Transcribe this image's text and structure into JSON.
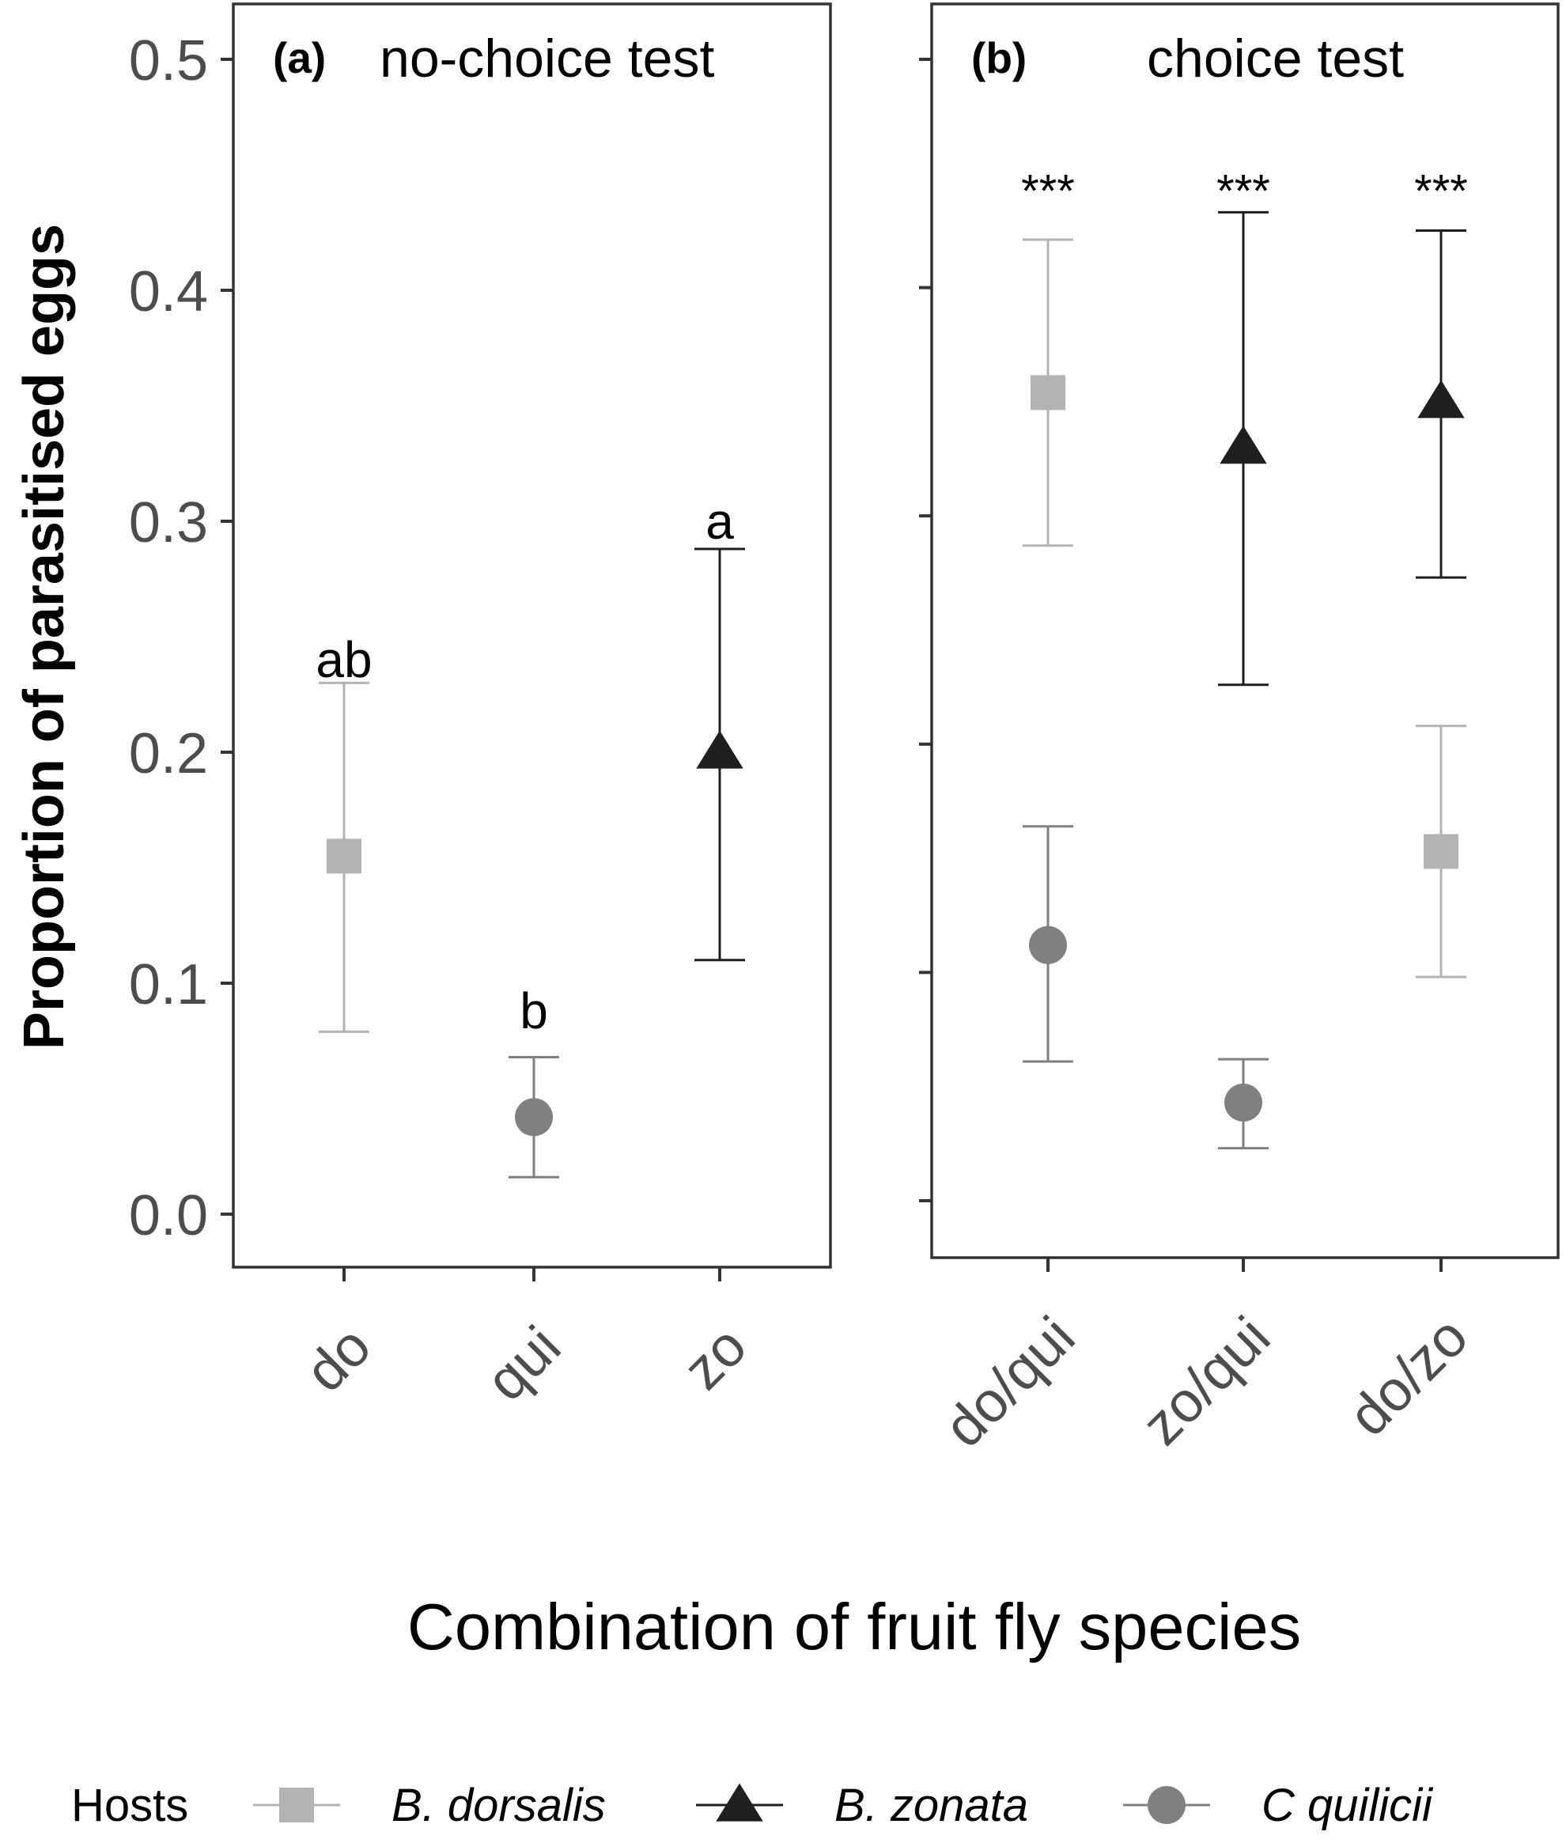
{
  "figure": {
    "ylabel": "Proportion of parasitised eggs",
    "xlabel": "Combination of fruit fly species",
    "legend_title": "Hosts",
    "y_tick_labels": [
      "0.0",
      "0.1",
      "0.2",
      "0.3",
      "0.4",
      "0.5"
    ]
  },
  "colors": {
    "B. dorsalis": "#b3b3b3",
    "B. zonata": "#1f1f1f",
    "C quilicii": "#808080",
    "axis": "#333333",
    "tick_label": "#4d4d4d"
  },
  "legend": [
    {
      "label": "B. dorsalis",
      "shape": "square",
      "color_key": "B. dorsalis"
    },
    {
      "label": "B. zonata",
      "shape": "triangle",
      "color_key": "B. zonata"
    },
    {
      "label": "C quilicii",
      "shape": "circle",
      "color_key": "C quilicii"
    }
  ],
  "chart_data": [
    {
      "type": "scatter",
      "panel_tag": "(a)",
      "title": "no-choice test",
      "categories": [
        "do",
        "qui",
        "zo"
      ],
      "ylim": [
        0.0,
        0.5
      ],
      "yticks": [
        0.0,
        0.1,
        0.2,
        0.3,
        0.4,
        0.5
      ],
      "grid": false,
      "points": [
        {
          "category": "do",
          "host": "B. dorsalis",
          "shape": "square",
          "y": 0.155,
          "ymin": 0.079,
          "ymax": 0.23
        },
        {
          "category": "qui",
          "host": "C quilicii",
          "shape": "circle",
          "y": 0.042,
          "ymin": 0.016,
          "ymax": 0.068
        },
        {
          "category": "zo",
          "host": "B. zonata",
          "shape": "triangle",
          "y": 0.2,
          "ymin": 0.11,
          "ymax": 0.288
        }
      ],
      "annotations": [
        {
          "category": "do",
          "text": "ab",
          "y": 0.24
        },
        {
          "category": "qui",
          "text": "b",
          "y": 0.088
        },
        {
          "category": "zo",
          "text": "a",
          "y": 0.3
        }
      ]
    },
    {
      "type": "scatter",
      "panel_tag": "(b)",
      "title": "choice test",
      "categories": [
        "do/qui",
        "zo/qui",
        "do/zo"
      ],
      "ylim": [
        0.0,
        0.5
      ],
      "yticks": [
        0.0,
        0.1,
        0.2,
        0.3,
        0.4,
        0.5
      ],
      "grid": false,
      "points": [
        {
          "category": "do/qui",
          "host": "B. dorsalis",
          "shape": "square",
          "y": 0.354,
          "ymin": 0.287,
          "ymax": 0.421
        },
        {
          "category": "do/qui",
          "host": "C quilicii",
          "shape": "circle",
          "y": 0.112,
          "ymin": 0.061,
          "ymax": 0.164
        },
        {
          "category": "zo/qui",
          "host": "B. zonata",
          "shape": "triangle",
          "y": 0.33,
          "ymin": 0.226,
          "ymax": 0.433
        },
        {
          "category": "zo/qui",
          "host": "C quilicii",
          "shape": "circle",
          "y": 0.043,
          "ymin": 0.023,
          "ymax": 0.062
        },
        {
          "category": "do/zo",
          "host": "B. zonata",
          "shape": "triangle",
          "y": 0.35,
          "ymin": 0.273,
          "ymax": 0.425
        },
        {
          "category": "do/zo",
          "host": "B. dorsalis",
          "shape": "square",
          "y": 0.153,
          "ymin": 0.098,
          "ymax": 0.208
        }
      ],
      "annotations": [
        {
          "category": "do/qui",
          "text": "***",
          "y": 0.443
        },
        {
          "category": "zo/qui",
          "text": "***",
          "y": 0.443
        },
        {
          "category": "do/zo",
          "text": "***",
          "y": 0.443
        }
      ]
    }
  ]
}
